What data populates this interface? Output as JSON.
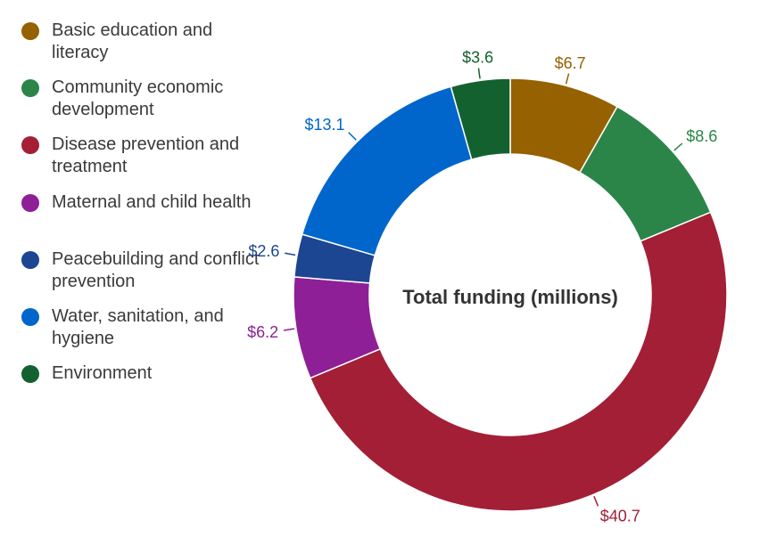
{
  "chart_data": {
    "type": "pie",
    "center_label": "Total funding (millions)",
    "legend_position": "left",
    "categories": [
      "Basic education and literacy",
      "Community economic development",
      "Disease prevention and treatment",
      "Maternal and child health",
      "Peacebuilding and conflict prevention",
      "Water, sanitation, and hygiene",
      "Environment"
    ],
    "values": [
      6.7,
      8.6,
      40.7,
      6.2,
      2.6,
      13.1,
      3.6
    ],
    "value_labels": [
      "$6.7",
      "$8.6",
      "$40.7",
      "$6.2",
      "$2.6",
      "$13.1",
      "$3.6"
    ],
    "colors": [
      "#966100",
      "#2b8548",
      "#a31f36",
      "#8e1f96",
      "#1c4592",
      "#0066cc",
      "#146130"
    ],
    "label_colors": [
      "#966100",
      "#2b8548",
      "#a31f36",
      "#8e1f96",
      "#1c4592",
      "#0066cc",
      "#146130"
    ]
  }
}
